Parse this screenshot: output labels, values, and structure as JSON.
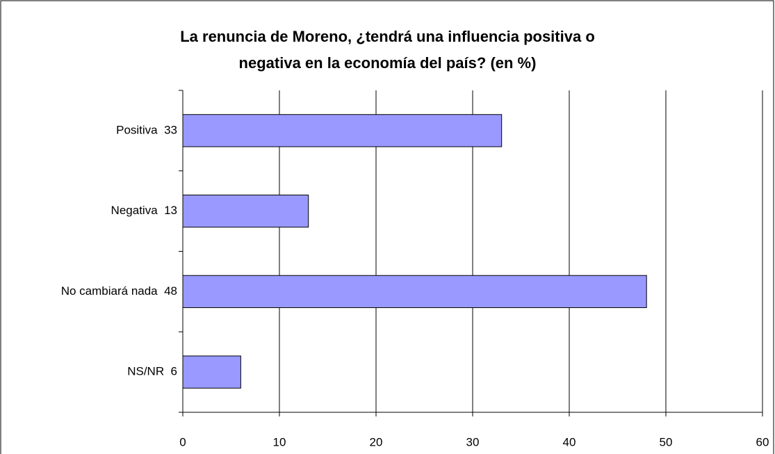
{
  "chart_data": {
    "type": "bar",
    "orientation": "horizontal",
    "title": "La renuncia de Moreno, ¿tendrá una influencia positiva o\nnegativa en la economía del país? (en %)",
    "categories": [
      "Positiva  33",
      "Negativa  13",
      "No cambiará nada  48",
      "NS/NR  6"
    ],
    "values": [
      33,
      13,
      48,
      6
    ],
    "color": "#9999ff",
    "xlim": [
      0,
      60
    ],
    "xticks": [
      0,
      10,
      20,
      30,
      40,
      50,
      60
    ],
    "grid": true
  }
}
